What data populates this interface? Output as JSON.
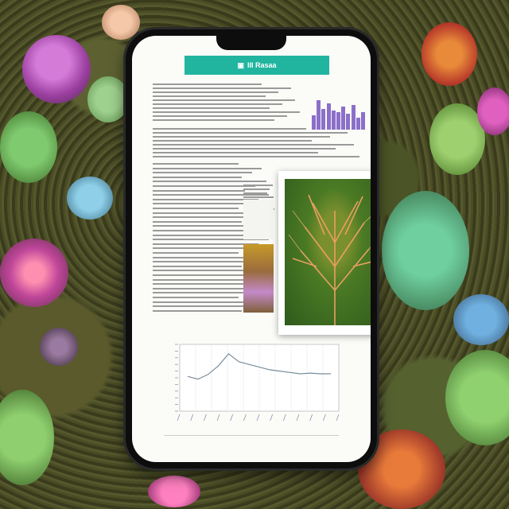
{
  "status": {
    "left": "",
    "right": ""
  },
  "app_header": {
    "title": "III Rasaa",
    "icon": "image-icon"
  },
  "colors": {
    "accent": "#21b5a0",
    "bar": "#8b6fc9",
    "line": "#7a8d9a"
  },
  "mini_chart_data": {
    "type": "bar",
    "values": [
      0.4,
      0.85,
      0.6,
      0.75,
      0.55,
      0.5,
      0.65,
      0.45,
      0.7,
      0.35,
      0.5
    ]
  },
  "chart_data": {
    "type": "line",
    "x": [
      0,
      1,
      2,
      3,
      4,
      5,
      6,
      7,
      8,
      9,
      10,
      11,
      12,
      13,
      14
    ],
    "y": [
      0.52,
      0.48,
      0.55,
      0.68,
      0.86,
      0.74,
      0.7,
      0.66,
      0.62,
      0.6,
      0.58,
      0.56,
      0.57,
      0.56,
      0.56
    ],
    "title": "",
    "xlabel": "",
    "ylabel": "",
    "grid": true
  },
  "footer": {
    "text": ""
  }
}
